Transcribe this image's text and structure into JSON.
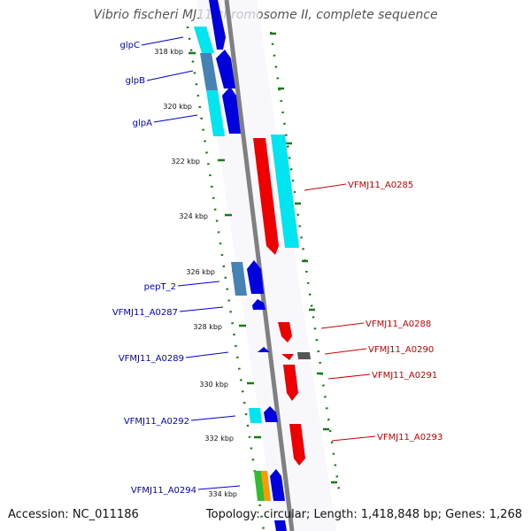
{
  "title": "Vibrio fischeri MJ11 chromosome II, complete sequence",
  "accession_text": "Accession: NC_011186",
  "summary_text": "Topology: circular; Length: 1,418,848 bp; Genes: 1,268",
  "colors": {
    "backbone": "#808080",
    "forward_label": "#0000cc",
    "reverse_label": "#cc0000",
    "tick": "#1a7a1a",
    "blue": "#0000dd",
    "red": "#ee0000",
    "cyan": "#00e5f0",
    "steel": "#4682b4",
    "gray": "#666666",
    "green": "#33bb33",
    "orange": "#ff9900"
  },
  "ticks": [
    "318 kbp",
    "320 kbp",
    "322 kbp",
    "324 kbp",
    "326 kbp",
    "328 kbp",
    "330 kbp",
    "332 kbp",
    "334 kbp"
  ],
  "labels_left": [
    "glpC",
    "glpB",
    "glpA",
    "pepT_2",
    "VFMJ11_A0287",
    "VFMJ11_A0289",
    "VFMJ11_A0292",
    "VFMJ11_A0294"
  ],
  "labels_right": [
    "VFMJ11_A0285",
    "VFMJ11_A0288",
    "VFMJ11_A0290",
    "VFMJ11_A0291",
    "VFMJ11_A0293"
  ]
}
